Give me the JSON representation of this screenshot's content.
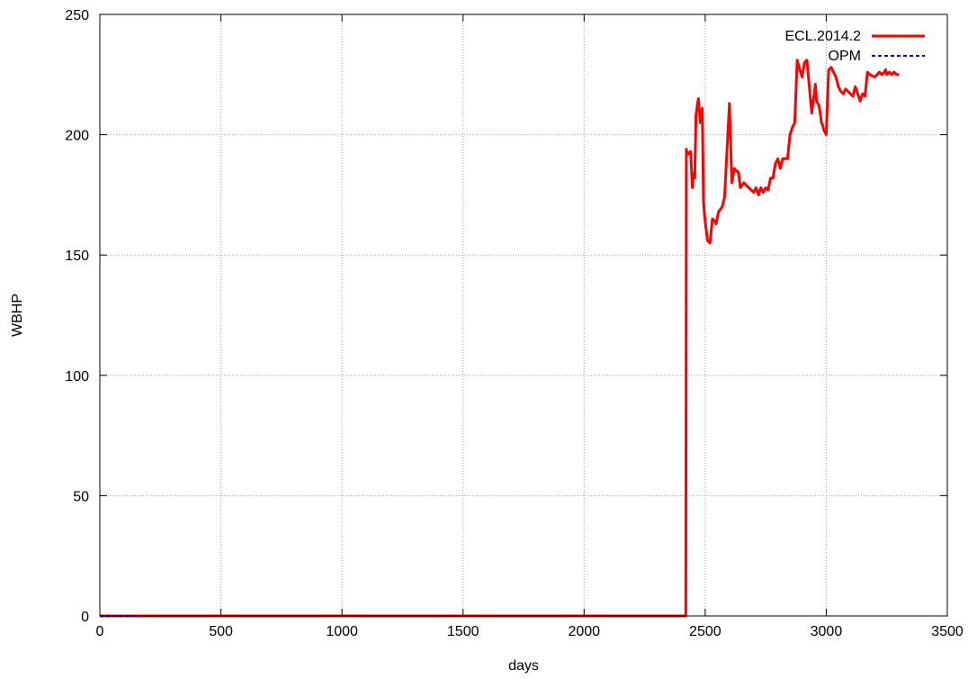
{
  "chart_data": {
    "type": "line",
    "title": "",
    "xlabel": "days",
    "ylabel": "WBHP",
    "xlim": [
      0,
      3500
    ],
    "ylim": [
      0,
      250
    ],
    "xticks": [
      0,
      500,
      1000,
      1500,
      2000,
      2500,
      3000,
      3500
    ],
    "yticks": [
      0,
      50,
      100,
      150,
      200,
      250
    ],
    "grid": true,
    "legend_position": "top-right",
    "series": [
      {
        "name": "ECL.2014.2",
        "color": "#ff0000",
        "dash": "solid",
        "x": [
          0,
          2420,
          2422,
          2424,
          2430,
          2440,
          2447,
          2452,
          2457,
          2462,
          2467,
          2472,
          2480,
          2488,
          2493,
          2497,
          2502,
          2505,
          2510,
          2520,
          2530,
          2541,
          2545,
          2555,
          2570,
          2580,
          2600,
          2610,
          2620,
          2628,
          2633,
          2638,
          2645,
          2660,
          2670,
          2680,
          2690,
          2700,
          2710,
          2720,
          2730,
          2740,
          2750,
          2760,
          2770,
          2780,
          2790,
          2800,
          2810,
          2820,
          2840,
          2850,
          2860,
          2870,
          2880,
          2900,
          2910,
          2920,
          2940,
          2950,
          2955,
          2960,
          2970,
          2975,
          2978,
          2980,
          2985,
          2990,
          3000,
          3010,
          3020,
          3030,
          3040,
          3050,
          3060,
          3070,
          3080,
          3090,
          3100,
          3110,
          3120,
          3140,
          3150,
          3160,
          3170,
          3180,
          3200,
          3210,
          3220,
          3230,
          3240,
          3245,
          3250,
          3260,
          3270,
          3280,
          3290,
          3300
        ],
        "y": [
          0,
          0,
          194,
          193,
          192,
          193,
          178,
          184,
          182,
          208,
          212,
          215,
          205,
          211,
          172,
          167,
          162,
          160,
          156,
          155,
          165,
          164,
          163,
          168,
          170,
          174,
          213,
          180,
          186,
          185,
          185,
          184,
          178,
          180,
          179,
          178,
          177,
          176,
          178,
          175,
          178,
          176,
          178,
          177,
          182,
          182,
          188,
          190,
          186,
          190,
          190,
          200,
          203,
          205,
          231,
          224,
          230,
          231,
          209,
          217,
          221,
          214,
          212,
          209,
          207,
          205,
          204,
          202,
          200,
          227,
          228,
          226,
          224,
          220,
          218,
          217,
          219,
          218,
          217,
          216,
          220,
          214,
          217,
          216,
          226,
          225,
          224,
          225,
          226,
          225,
          226,
          227,
          225,
          226,
          225,
          226,
          225,
          225
        ],
        "stroke_width": 3
      },
      {
        "name": "OPM",
        "color": "#0000ff",
        "dash": "dashed",
        "x": [
          0,
          145
        ],
        "y": [
          0,
          0
        ],
        "stroke_width": 2
      }
    ]
  }
}
